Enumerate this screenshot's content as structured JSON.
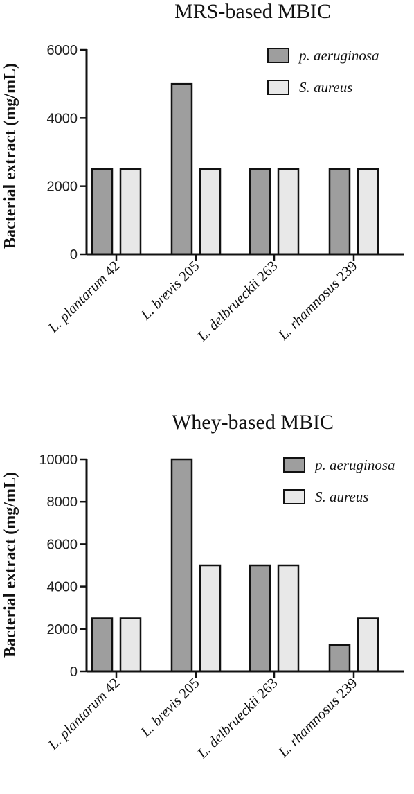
{
  "chart_data": [
    {
      "type": "bar",
      "title": "MRS-based MBIC",
      "ylabel": "Bacterial extract (mg/mL)",
      "xlabel": "",
      "ylim": [
        0,
        6000
      ],
      "yticks": [
        "0",
        "2000",
        "4000",
        "6000"
      ],
      "categories": [
        {
          "species": "L.",
          "strain": "plantarum",
          "number": "42"
        },
        {
          "species": "L.",
          "strain": "brevis",
          "number": "205"
        },
        {
          "species": "L.",
          "strain": "delbrueckii",
          "number": "263"
        },
        {
          "species": "L.",
          "strain": "rhamnosus",
          "number": "239"
        }
      ],
      "series": [
        {
          "name": "p. aeruginosa",
          "color": "#9e9e9e",
          "values": [
            2500,
            5000,
            2500,
            2500
          ]
        },
        {
          "name": "S. aureus",
          "color": "#e8e8e8",
          "values": [
            2500,
            2500,
            2500,
            2500
          ]
        }
      ],
      "legend": "top-right",
      "grid": false
    },
    {
      "type": "bar",
      "title": "Whey-based MBIC",
      "ylabel": "Bacterial extract (mg/mL)",
      "xlabel": "",
      "ylim": [
        0,
        10000
      ],
      "yticks": [
        "0",
        "2000",
        "4000",
        "6000",
        "8000",
        "10000"
      ],
      "categories": [
        {
          "species": "L.",
          "strain": "plantarum",
          "number": "42"
        },
        {
          "species": "L.",
          "strain": "brevis",
          "number": "205"
        },
        {
          "species": "L.",
          "strain": "delbrueckii",
          "number": "263"
        },
        {
          "species": "L.",
          "strain": "rhamnosus",
          "number": "239"
        }
      ],
      "series": [
        {
          "name": "p. aeruginosa",
          "color": "#9e9e9e",
          "values": [
            2500,
            10000,
            5000,
            1250
          ]
        },
        {
          "name": "S. aureus",
          "color": "#e8e8e8",
          "values": [
            2500,
            5000,
            5000,
            2500
          ]
        }
      ],
      "legend": "top-right",
      "grid": false
    }
  ]
}
